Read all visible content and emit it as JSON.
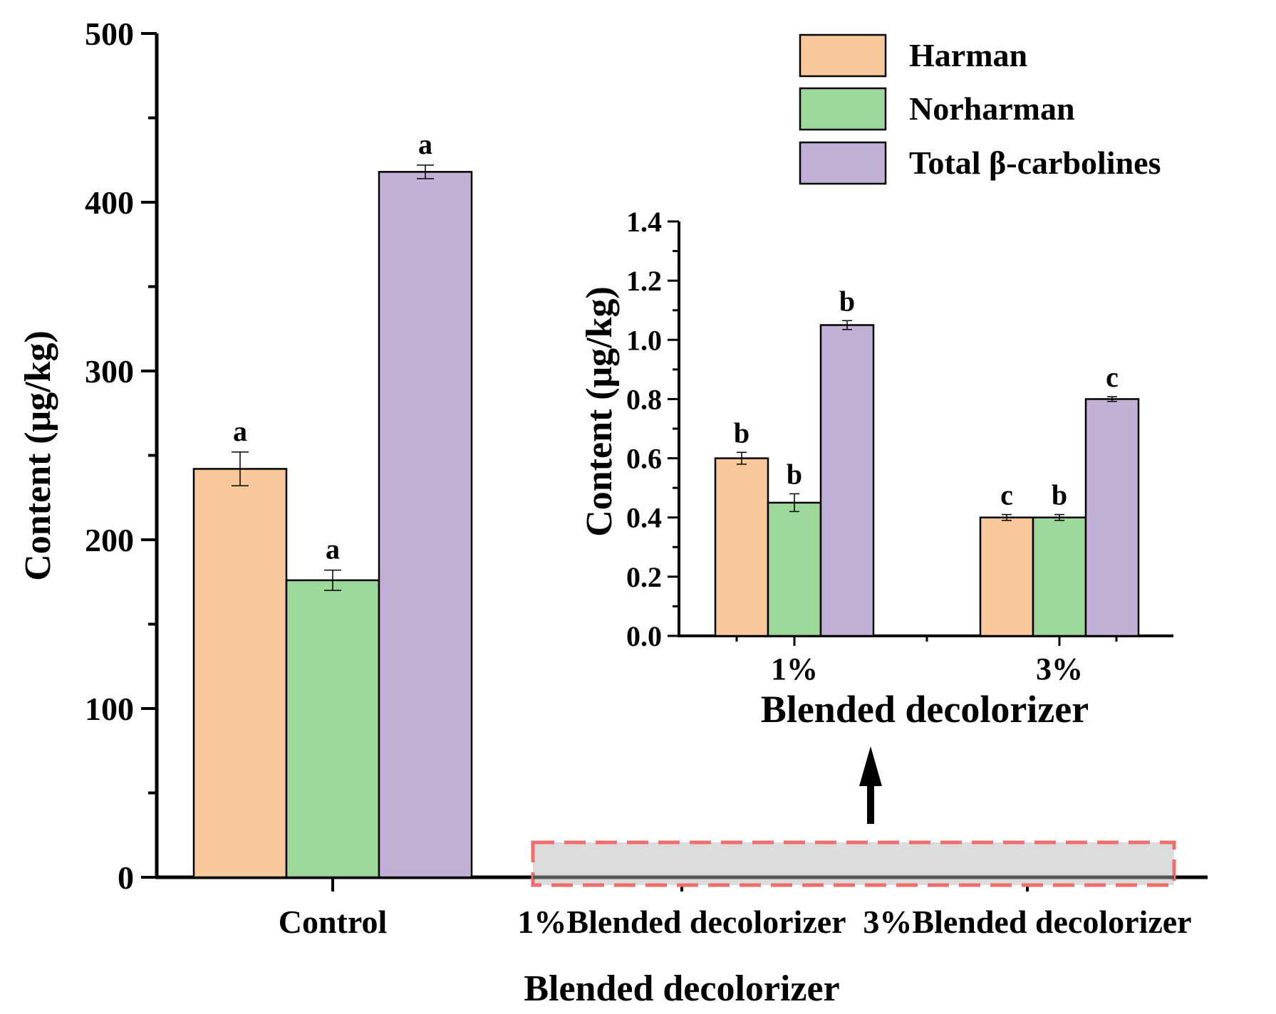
{
  "colors": {
    "harman": "#F9C89A",
    "norharman": "#9DD89A",
    "total": "#C2B0D6",
    "highlight_fill": "#DCDCDC",
    "highlight_border": "#EE6E6E"
  },
  "legend": [
    "Harman",
    "Norharman",
    "Total β-carbolines"
  ],
  "chart_data": [
    {
      "type": "bar",
      "title": "",
      "xlabel": "Blended decolorizer",
      "ylabel": "Content (μg/kg)",
      "ylim": [
        0,
        500
      ],
      "yticks": [
        0,
        100,
        200,
        300,
        400,
        500
      ],
      "ytick_labels": [
        "0",
        "100",
        "200",
        "300",
        "400",
        "500"
      ],
      "categories": [
        "Control",
        "1%Blended decolorizer",
        "3%Blended decolorizer"
      ],
      "series": [
        {
          "name": "Harman",
          "values": [
            242,
            0.6,
            0.4
          ],
          "errors": [
            10,
            0,
            0
          ],
          "letters": [
            "a",
            "",
            ""
          ]
        },
        {
          "name": "Norharman",
          "values": [
            176,
            0.45,
            0.4
          ],
          "errors": [
            6,
            0,
            0
          ],
          "letters": [
            "a",
            "",
            ""
          ]
        },
        {
          "name": "Total β-carbolines",
          "values": [
            418,
            1.05,
            0.8
          ],
          "errors": [
            4,
            0,
            0
          ],
          "letters": [
            "a",
            "",
            ""
          ]
        }
      ],
      "legend_position": "top-right"
    },
    {
      "type": "bar",
      "title": "",
      "xlabel": "Blended decolorizer",
      "ylabel": "Content (μg/kg)",
      "ylim": [
        0,
        1.4
      ],
      "yticks": [
        0,
        0.2,
        0.4,
        0.6,
        0.8,
        1.0,
        1.2,
        1.4
      ],
      "ytick_labels": [
        "0.0",
        "0.2",
        "0.4",
        "0.6",
        "0.8",
        "1.0",
        "1.2",
        "1.4"
      ],
      "categories": [
        "1%",
        "3%"
      ],
      "series": [
        {
          "name": "Harman",
          "values": [
            0.6,
            0.4
          ],
          "errors": [
            0.02,
            0.01
          ],
          "letters": [
            "b",
            "c"
          ]
        },
        {
          "name": "Norharman",
          "values": [
            0.45,
            0.4
          ],
          "errors": [
            0.03,
            0.01
          ],
          "letters": [
            "b",
            "b"
          ]
        },
        {
          "name": "Total β-carbolines",
          "values": [
            1.05,
            0.8
          ],
          "errors": [
            0.015,
            0.008
          ],
          "letters": [
            "b",
            "c"
          ]
        }
      ]
    }
  ]
}
